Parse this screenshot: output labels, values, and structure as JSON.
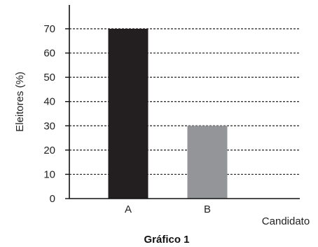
{
  "chart_data": {
    "type": "bar",
    "title": "Gráfico 1",
    "xlabel": "Candidato",
    "ylabel": "Eleitores (%)",
    "categories": [
      "A",
      "B"
    ],
    "values": [
      70,
      30
    ],
    "ylim": [
      0,
      75
    ],
    "yticks": [
      "0",
      "10",
      "20",
      "30",
      "40",
      "50",
      "60",
      "70"
    ],
    "grid": "horizontal dashed",
    "colors": [
      "#231f20",
      "#939598"
    ]
  }
}
